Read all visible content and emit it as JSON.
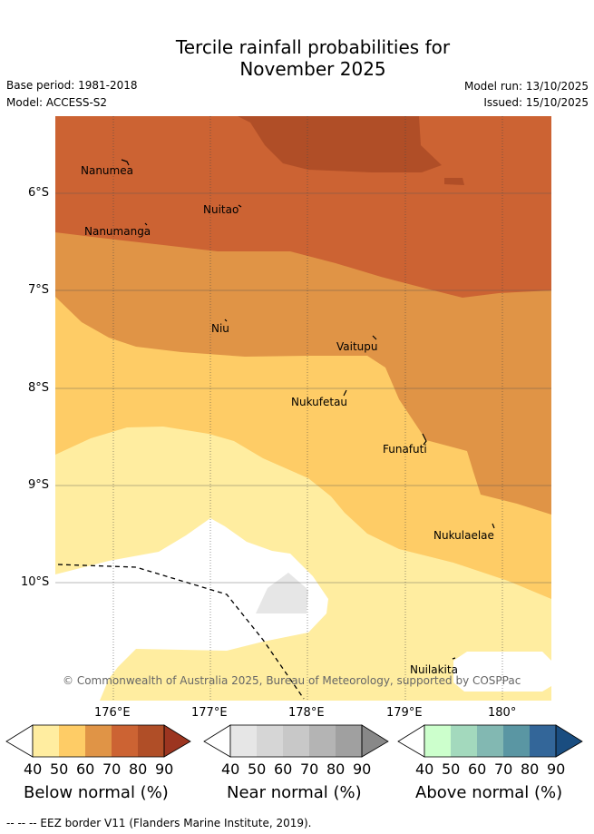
{
  "title_line1": "Tercile rainfall probabilities for",
  "title_line2": "November 2025",
  "base_period": "Base period: 1981-2018",
  "model": "Model: ACCESS-S2",
  "model_run": "Model run: 13/10/2025",
  "issued": "Issued: 15/10/2025",
  "lat_labels": [
    "6°S",
    "7°S",
    "8°S",
    "9°S",
    "10°S"
  ],
  "lon_labels": [
    "176°E",
    "177°E",
    "178°E",
    "179°E",
    "180°"
  ],
  "places": [
    {
      "name": "Nanumea"
    },
    {
      "name": "Nuitao"
    },
    {
      "name": "Nanumanga"
    },
    {
      "name": "Niu"
    },
    {
      "name": "Vaitupu"
    },
    {
      "name": "Nukufetau"
    },
    {
      "name": "Funafuti"
    },
    {
      "name": "Nukulaelae"
    },
    {
      "name": "Nuilakita"
    }
  ],
  "copyright": "© Commonwealth of Australia 2025, Bureau of Meteorology, supported by COSPPac",
  "colorbars": [
    {
      "title": "Below normal (%)",
      "ticks": [
        "40",
        "50",
        "60",
        "70",
        "80",
        "90"
      ],
      "colors": [
        "#ffeda0",
        "#fecc66",
        "#e09446",
        "#cc6333",
        "#b04e27",
        "#9c3520"
      ]
    },
    {
      "title": "Near normal (%)",
      "ticks": [
        "40",
        "50",
        "60",
        "70",
        "80",
        "90"
      ],
      "colors": [
        "#e6e6e6",
        "#d6d6d6",
        "#c8c8c8",
        "#b4b4b4",
        "#a0a0a0",
        "#888888"
      ]
    },
    {
      "title": "Above normal (%)",
      "ticks": [
        "40",
        "50",
        "60",
        "70",
        "80",
        "90"
      ],
      "colors": [
        "#ccffcc",
        "#a3d9bd",
        "#82b8b2",
        "#5a96a3",
        "#336699",
        "#1a4d80"
      ]
    }
  ],
  "legend_eez": "-- -- -- EEZ border V11 (Flanders Marine Institute, 2019)."
}
